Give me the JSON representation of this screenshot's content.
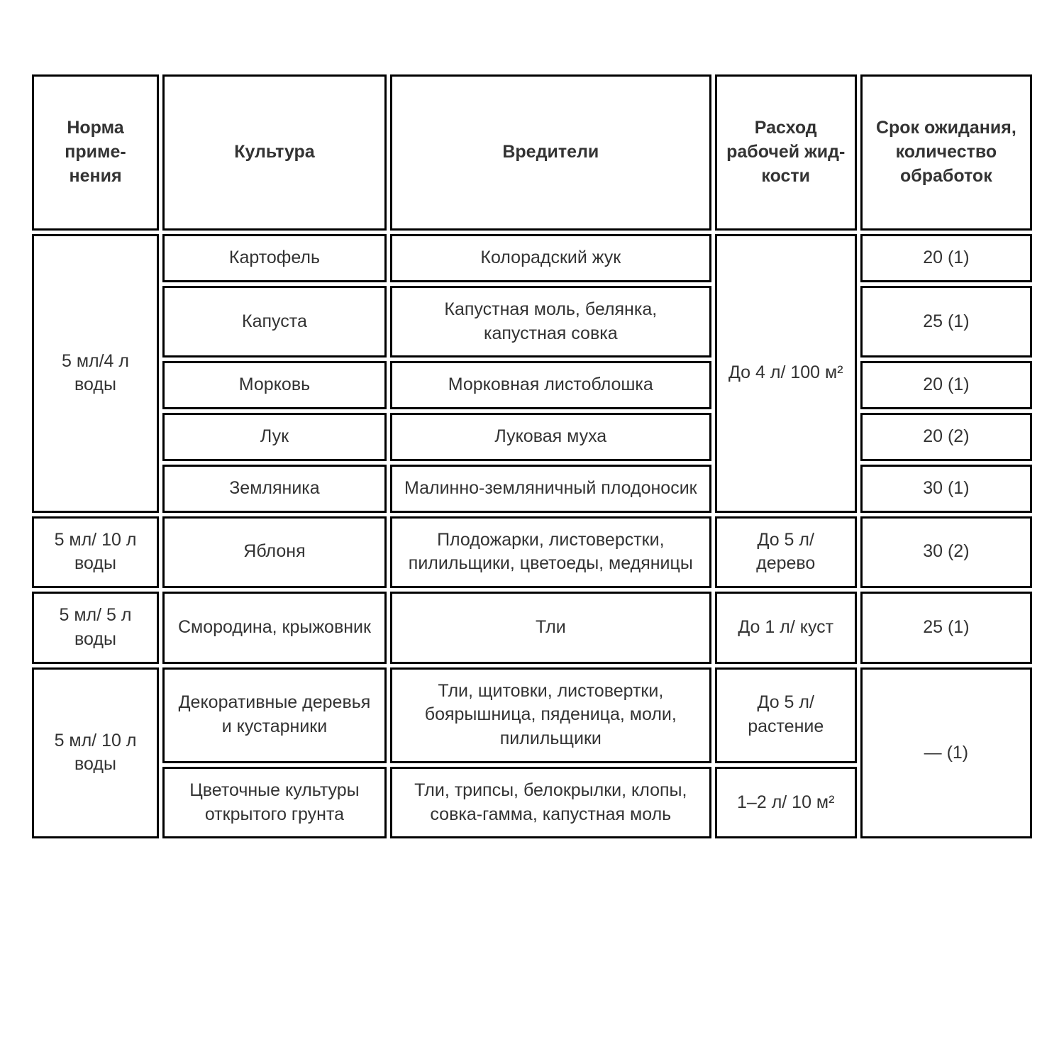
{
  "table": {
    "headers": {
      "norma": "Норма приме-нения",
      "kultura": "Культура",
      "vrediteli": "Вредители",
      "rashod": "Расход рабочей жид-кости",
      "srok": "Срок ожидания, количество обработок"
    },
    "groups": [
      {
        "norma": "5 мл/4 л воды",
        "rashod": "До 4 л/ 100 м²",
        "rashod_span": 5,
        "rows": [
          {
            "kultura": "Картофель",
            "vrediteli": "Колорадский жук",
            "srok": "20 (1)"
          },
          {
            "kultura": "Капуста",
            "vrediteli": "Капустная моль, белянка, капустная совка",
            "srok": "25 (1)"
          },
          {
            "kultura": "Морковь",
            "vrediteli": "Морковная листоблошка",
            "srok": "20 (1)"
          },
          {
            "kultura": "Лук",
            "vrediteli": "Луковая муха",
            "srok": "20 (2)"
          },
          {
            "kultura": "Земляника",
            "vrediteli": "Малинно-земляничный плодоносик",
            "srok": "30 (1)"
          }
        ]
      },
      {
        "norma": "5 мл/ 10 л воды",
        "rashod": "До 5 л/ дерево",
        "rashod_span": 1,
        "rows": [
          {
            "kultura": "Яблоня",
            "vrediteli": "Плодожарки, листоверстки, пилильщики, цветоеды, медяницы",
            "srok": "30 (2)"
          }
        ]
      },
      {
        "norma": "5 мл/ 5 л воды",
        "rashod": "До 1 л/ куст",
        "rashod_span": 1,
        "rows": [
          {
            "kultura": "Смородина, крыжовник",
            "vrediteli": "Тли",
            "srok": "25 (1)"
          }
        ]
      },
      {
        "norma": "5 мл/ 10 л воды",
        "srok_shared": "— (1)",
        "rows": [
          {
            "kultura": "Декоративные деревья и кустарники",
            "vrediteli": "Тли, щитовки, листовертки, боярышница, пяденица, моли, пилильщики",
            "rashod": "До 5 л/ растение"
          },
          {
            "kultura": "Цветочные культуры открытого грунта",
            "vrediteli": "Тли, трипсы, белокрылки, клопы, совка-гамма, капустная моль",
            "rashod": "1–2 л/ 10 м²"
          }
        ]
      }
    ],
    "styling": {
      "border_color": "#000000",
      "border_width": 3,
      "text_color": "#333333",
      "background_color": "#ffffff",
      "font_family": "Verdana",
      "header_fontsize": 25,
      "cell_fontsize": 25,
      "col_widths": {
        "norma": 170,
        "kultura": 300,
        "vrediteli": 430,
        "rashod": 190,
        "srok": 230
      },
      "border_spacing": 5
    }
  }
}
